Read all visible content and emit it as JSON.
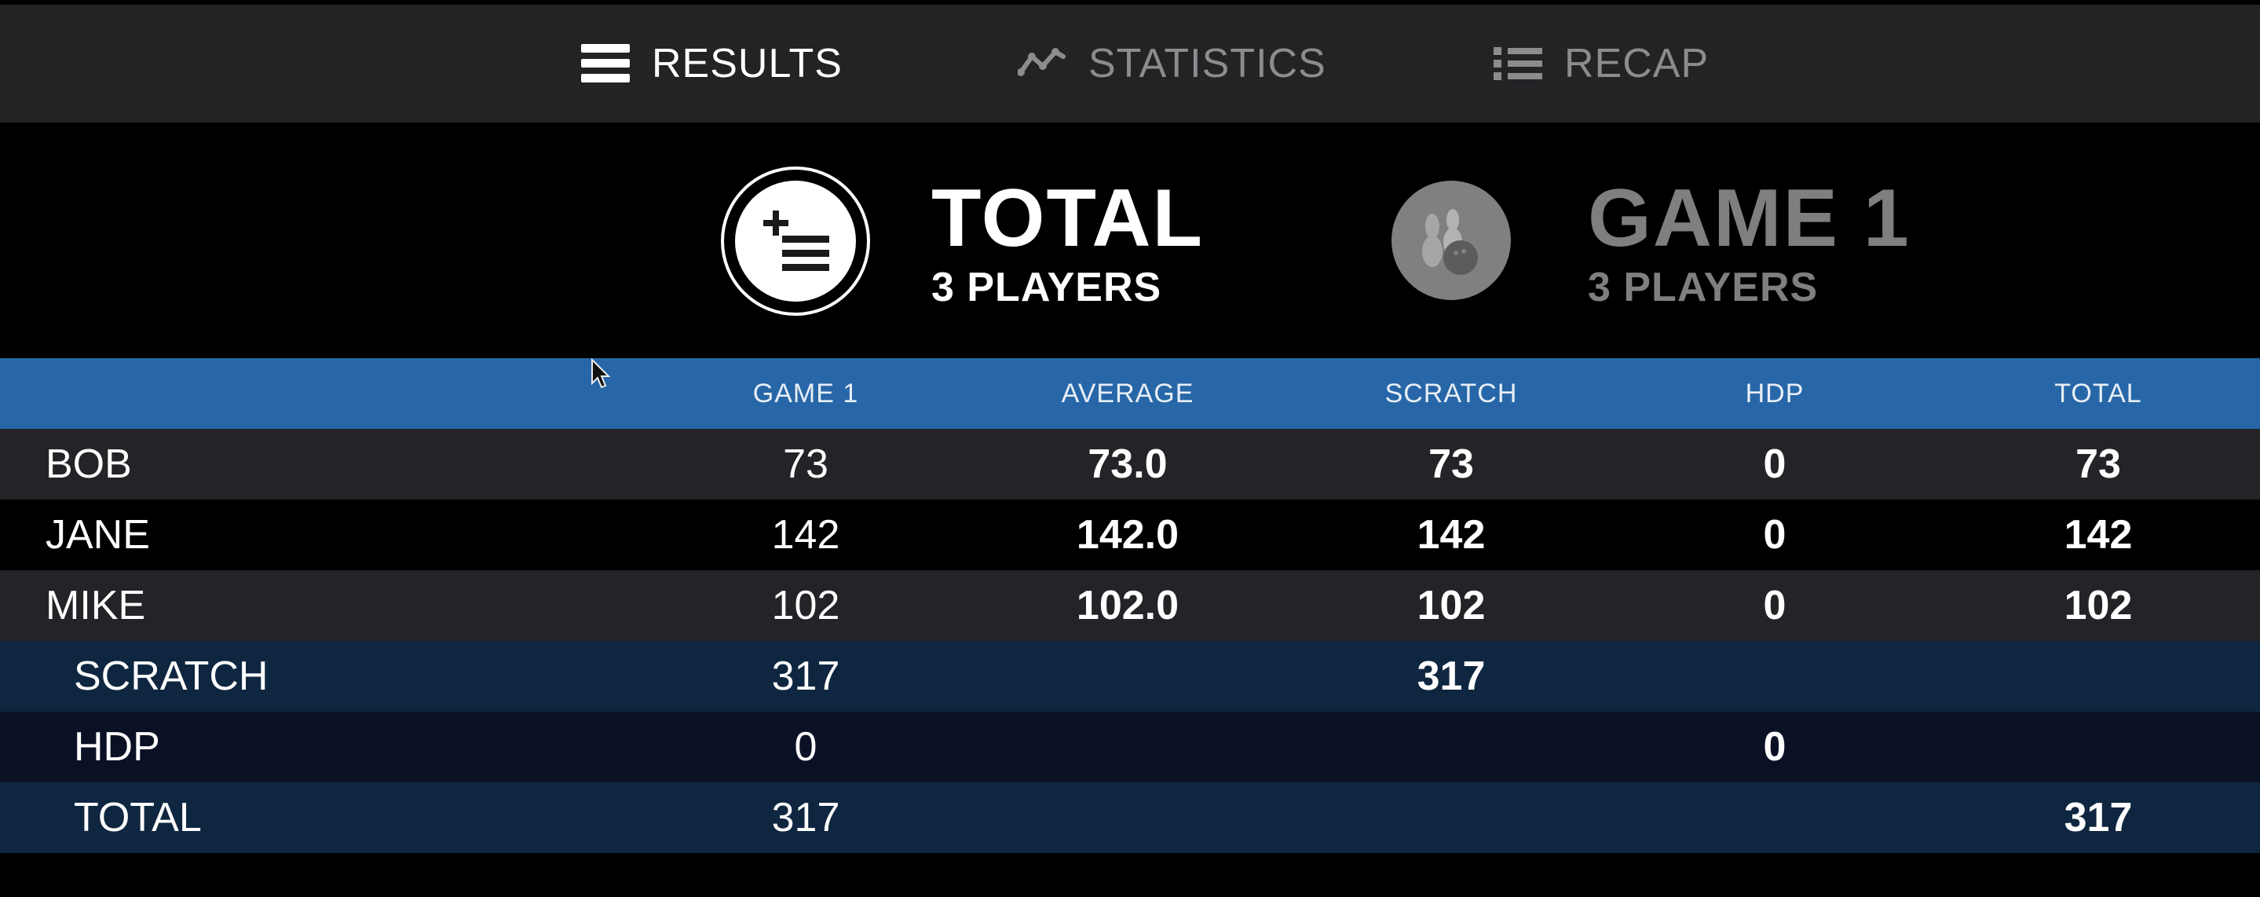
{
  "nav": {
    "tabs": [
      {
        "label": "RESULTS",
        "icon": "hamburger-icon",
        "active": true
      },
      {
        "label": "STATISTICS",
        "icon": "trend-line-icon",
        "active": false
      },
      {
        "label": "RECAP",
        "icon": "list-icon",
        "active": false
      }
    ]
  },
  "cards": {
    "total": {
      "title": "TOTAL",
      "subtitle": "3 PLAYERS",
      "icon": "add-list-icon",
      "active": true
    },
    "game1": {
      "title": "GAME 1",
      "subtitle": "3 PLAYERS",
      "icon": "bowling-pins-icon",
      "active": false
    }
  },
  "table": {
    "headers": {
      "name": "",
      "game1": "GAME 1",
      "average": "AVERAGE",
      "scratch": "SCRATCH",
      "hdp": "HDP",
      "total": "TOTAL"
    },
    "players": [
      {
        "name": "BOB",
        "game1": "73",
        "average": "73.0",
        "scratch": "73",
        "hdp": "0",
        "total": "73"
      },
      {
        "name": "JANE",
        "game1": "142",
        "average": "142.0",
        "scratch": "142",
        "hdp": "0",
        "total": "142"
      },
      {
        "name": "MIKE",
        "game1": "102",
        "average": "102.0",
        "scratch": "102",
        "hdp": "0",
        "total": "102"
      }
    ],
    "summary": [
      {
        "name": "SCRATCH",
        "game1": "317",
        "average": "",
        "scratch": "317",
        "hdp": "",
        "total": ""
      },
      {
        "name": "HDP",
        "game1": "0",
        "average": "",
        "scratch": "",
        "hdp": "0",
        "total": ""
      },
      {
        "name": "TOTAL",
        "game1": "317",
        "average": "",
        "scratch": "",
        "hdp": "",
        "total": "317"
      }
    ]
  },
  "colors": {
    "nav_bg": "#232225",
    "header_row": "#2767a8",
    "row_dark": "#242327",
    "row_black": "#000000",
    "summary_a": "#0f2640",
    "summary_b": "#0b1124",
    "inactive_text": "#8c8c8e"
  }
}
